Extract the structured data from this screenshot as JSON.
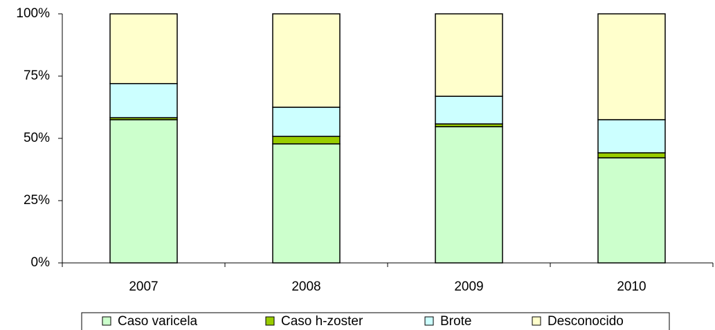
{
  "chart_data": {
    "type": "stacked_bar_100",
    "categories": [
      "2007",
      "2008",
      "2009",
      "2010"
    ],
    "series": [
      {
        "name": "Caso varicela",
        "color": "#ccffcc",
        "values": [
          57.5,
          47.8,
          54.7,
          42.2
        ]
      },
      {
        "name": "Caso h-zoster",
        "color": "#99cc00",
        "values": [
          0.8,
          3.0,
          1.1,
          2.0
        ]
      },
      {
        "name": "Brote",
        "color": "#ccffff",
        "values": [
          13.7,
          11.7,
          11.1,
          13.3
        ]
      },
      {
        "name": "Desconocido",
        "color": "#ffffcc",
        "values": [
          28.0,
          37.5,
          33.1,
          42.5
        ]
      }
    ],
    "ylim": [
      0,
      100
    ],
    "yticks": [
      {
        "value": 0,
        "label": "0%"
      },
      {
        "value": 25,
        "label": "25%"
      },
      {
        "value": 50,
        "label": "50%"
      },
      {
        "value": 75,
        "label": "75%"
      },
      {
        "value": 100,
        "label": "100%"
      }
    ],
    "grid": false,
    "legend": "bottom"
  }
}
